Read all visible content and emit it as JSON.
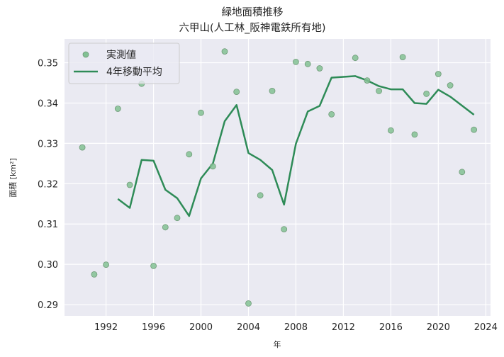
{
  "chart_data": {
    "type": "line",
    "title": "緑地面積推移",
    "subtitle": "六甲山(人工林_阪神電鉄所有地)",
    "xlabel": "年",
    "ylabel": "面積 [km²]",
    "xlim": [
      1988.5,
      2024.4
    ],
    "ylim": [
      0.2872,
      0.3559
    ],
    "xticks": [
      1992,
      1996,
      2000,
      2004,
      2008,
      2012,
      2016,
      2020,
      2024
    ],
    "yticks": [
      0.29,
      0.3,
      0.31,
      0.32,
      0.33,
      0.34,
      0.35
    ],
    "ytick_labels": [
      "0.29",
      "0.30",
      "0.31",
      "0.32",
      "0.33",
      "0.34",
      "0.35"
    ],
    "grid": true,
    "legend_position": "upper left",
    "series": [
      {
        "name": "実測値",
        "kind": "scatter",
        "color": "#82c193",
        "edge_color": "#6f9a78",
        "x": [
          1990,
          1991,
          1992,
          1993,
          1994,
          1995,
          1996,
          1997,
          1998,
          1999,
          2000,
          2001,
          2002,
          2003,
          2004,
          2005,
          2006,
          2007,
          2008,
          2009,
          2010,
          2011,
          2013,
          2014,
          2015,
          2016,
          2017,
          2018,
          2019,
          2020,
          2021,
          2022,
          2023
        ],
        "values": [
          0.329,
          0.2975,
          0.2999,
          0.3386,
          0.3197,
          0.3448,
          0.2996,
          0.3092,
          0.3115,
          0.3273,
          0.3376,
          0.3243,
          0.3528,
          0.3428,
          0.2903,
          0.3171,
          0.343,
          0.3087,
          0.3502,
          0.3497,
          0.3486,
          0.3372,
          0.3512,
          0.3456,
          0.343,
          0.3332,
          0.3514,
          0.3322,
          0.3423,
          0.3472,
          0.3444,
          0.3229,
          0.3334
        ]
      },
      {
        "name": "4年移動平均",
        "kind": "line",
        "color": "#2e8b57",
        "x": [
          1993,
          1994,
          1995,
          1996,
          1997,
          1998,
          1999,
          2000,
          2001,
          2002,
          2003,
          2004,
          2005,
          2006,
          2007,
          2008,
          2009,
          2010,
          2011,
          2013,
          2014,
          2015,
          2016,
          2017,
          2018,
          2019,
          2020,
          2021,
          2023
        ],
        "values": [
          0.3162,
          0.314,
          0.3259,
          0.3257,
          0.3185,
          0.3164,
          0.312,
          0.3213,
          0.325,
          0.3355,
          0.3395,
          0.3276,
          0.3259,
          0.3234,
          0.3148,
          0.3299,
          0.3379,
          0.3393,
          0.3463,
          0.3467,
          0.3456,
          0.3442,
          0.3434,
          0.3434,
          0.34,
          0.3398,
          0.3433,
          0.3416,
          0.3371
        ]
      }
    ]
  },
  "colors": {
    "plot_background": "#eaeaf2",
    "grid": "#ffffff",
    "text": "#262626"
  }
}
